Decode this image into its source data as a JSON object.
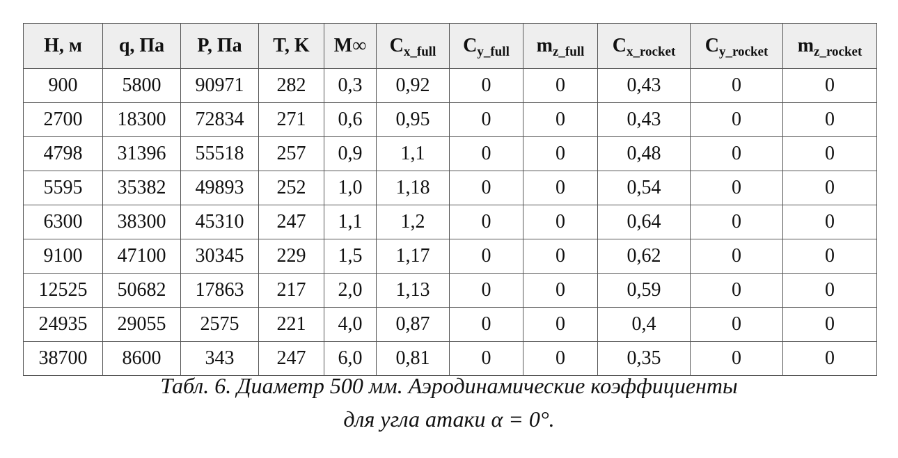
{
  "table": {
    "header": [
      "H, м",
      "q, Па",
      "P, Па",
      "T, K",
      "M∞",
      {
        "main": "C",
        "sub": "x_full"
      },
      {
        "main": "C",
        "sub": "y_full"
      },
      {
        "main": "m",
        "sub": "z_full"
      },
      {
        "main": "C",
        "sub": "x_rocket"
      },
      {
        "main": "C",
        "sub": "y_rocket"
      },
      {
        "main": "m",
        "sub": "z_rocket"
      }
    ],
    "rows": [
      [
        "900",
        "5800",
        "90971",
        "282",
        "0,3",
        "0,92",
        "0",
        "0",
        "0,43",
        "0",
        "0"
      ],
      [
        "2700",
        "18300",
        "72834",
        "271",
        "0,6",
        "0,95",
        "0",
        "0",
        "0,43",
        "0",
        "0"
      ],
      [
        "4798",
        "31396",
        "55518",
        "257",
        "0,9",
        "1,1",
        "0",
        "0",
        "0,48",
        "0",
        "0"
      ],
      [
        "5595",
        "35382",
        "49893",
        "252",
        "1,0",
        "1,18",
        "0",
        "0",
        "0,54",
        "0",
        "0"
      ],
      [
        "6300",
        "38300",
        "45310",
        "247",
        "1,1",
        "1,2",
        "0",
        "0",
        "0,64",
        "0",
        "0"
      ],
      [
        "9100",
        "47100",
        "30345",
        "229",
        "1,5",
        "1,17",
        "0",
        "0",
        "0,62",
        "0",
        "0"
      ],
      [
        "12525",
        "50682",
        "17863",
        "217",
        "2,0",
        "1,13",
        "0",
        "0",
        "0,59",
        "0",
        "0"
      ],
      [
        "24935",
        "29055",
        "2575",
        "221",
        "4,0",
        "0,87",
        "0",
        "0",
        "0,4",
        "0",
        "0"
      ],
      [
        "38700",
        "8600",
        "343",
        "247",
        "6,0",
        "0,81",
        "0",
        "0",
        "0,35",
        "0",
        "0"
      ]
    ]
  },
  "caption": {
    "line1": "Табл. 6. Диаметр 500 мм. Аэродинамические коэффициенты",
    "line2": "для угла атаки α = 0°."
  }
}
